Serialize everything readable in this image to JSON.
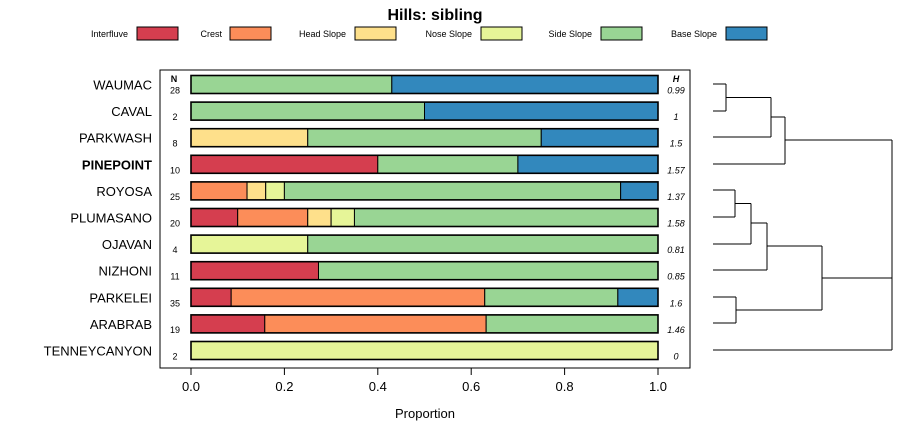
{
  "chart_data": {
    "type": "bar",
    "orientation": "horizontal-stacked",
    "title": "Hills: sibling",
    "xlabel": "Proportion",
    "xlim": [
      0,
      1
    ],
    "x_ticks": [
      "0.0",
      "0.2",
      "0.4",
      "0.6",
      "0.8",
      "1.0"
    ],
    "n_header": "N",
    "h_header": "H",
    "legend_position": "top",
    "categories_legend": [
      {
        "name": "Interfluve",
        "color": "#d53e4f"
      },
      {
        "name": "Crest",
        "color": "#fc8d59"
      },
      {
        "name": "Head Slope",
        "color": "#fee08b"
      },
      {
        "name": "Nose Slope",
        "color": "#e6f598"
      },
      {
        "name": "Side Slope",
        "color": "#99d594"
      },
      {
        "name": "Base Slope",
        "color": "#3288bd"
      }
    ],
    "rows": [
      {
        "label": "WAUMAC",
        "bold": false,
        "n": "28",
        "h": "0.99",
        "values": [
          0,
          0,
          0,
          0,
          0.43,
          0.57
        ]
      },
      {
        "label": "CAVAL",
        "bold": false,
        "n": "2",
        "h": "1",
        "values": [
          0,
          0,
          0,
          0,
          0.5,
          0.5
        ]
      },
      {
        "label": "PARKWASH",
        "bold": false,
        "n": "8",
        "h": "1.5",
        "values": [
          0,
          0,
          0.25,
          0,
          0.5,
          0.25
        ]
      },
      {
        "label": "PINEPOINT",
        "bold": true,
        "n": "10",
        "h": "1.57",
        "values": [
          0.4,
          0,
          0,
          0,
          0.3,
          0.3
        ]
      },
      {
        "label": "ROYOSA",
        "bold": false,
        "n": "25",
        "h": "1.37",
        "values": [
          0,
          0.12,
          0.04,
          0.04,
          0.72,
          0.08
        ]
      },
      {
        "label": "PLUMASANO",
        "bold": false,
        "n": "20",
        "h": "1.58",
        "values": [
          0.1,
          0.15,
          0.05,
          0.05,
          0.65,
          0
        ]
      },
      {
        "label": "OJAVAN",
        "bold": false,
        "n": "4",
        "h": "0.81",
        "values": [
          0,
          0,
          0,
          0.25,
          0.75,
          0
        ]
      },
      {
        "label": "NIZHONI",
        "bold": false,
        "n": "11",
        "h": "0.85",
        "values": [
          0.273,
          0,
          0,
          0,
          0.727,
          0
        ]
      },
      {
        "label": "PARKELEI",
        "bold": false,
        "n": "35",
        "h": "1.6",
        "values": [
          0.086,
          0.543,
          0,
          0,
          0.285,
          0.086
        ]
      },
      {
        "label": "ARABRAB",
        "bold": false,
        "n": "19",
        "h": "1.46",
        "values": [
          0.158,
          0.474,
          0,
          0,
          0.368,
          0
        ]
      },
      {
        "label": "TENNEYCANYON",
        "bold": false,
        "n": "2",
        "h": "0",
        "values": [
          0,
          0,
          0,
          1,
          0,
          0
        ]
      }
    ]
  }
}
